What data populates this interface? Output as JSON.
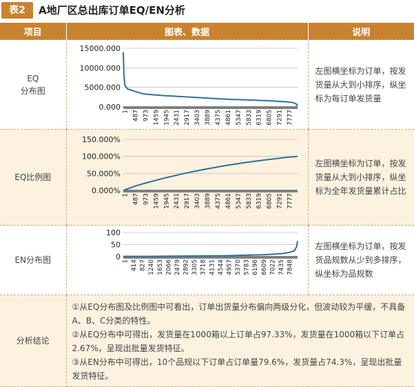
{
  "header": {
    "tag": "表2",
    "title": "A地厂区总出库订单EQ/EN分析"
  },
  "columns": [
    "项目",
    "图表、数据",
    "说明"
  ],
  "rows": [
    {
      "label_line1": "EQ",
      "label_line2": "分布图",
      "description": "左图横坐标为订单，按发货量从大到小排序，纵坐标为每订单发货量"
    },
    {
      "label_line1": "EQ比例图",
      "label_line2": "",
      "description": "左图横坐标为订单，按发货量从大到小排序，纵坐标为全年发货量累计占比"
    },
    {
      "label_line1": "EN分布图",
      "label_line2": "",
      "description": "左图横坐标为订单，按发货品规数从少到多排序，纵坐标为品规数"
    },
    {
      "label_line1": "分析结论",
      "label_line2": "",
      "conclusions": [
        "①从EQ分布图及比例图中可看出，订单出货量分布偏向两级分化，但波动较为平缓，不具备A、B、C分类的特性。",
        "②从EQ分布中可得出，发货量在1000箱以上订单占97.33%，发货量在1000箱以下订单占2.67%，呈现出批量发货特征。",
        "③从EN分布中可得出，10个品规以下订单占订单量79.6%，发货量占74.3%，呈现出批量发货特征。"
      ]
    }
  ],
  "colors": {
    "header": "#c9822f",
    "alt_row": "#fdf2e0",
    "series": "#2f6f99"
  },
  "chart_data": [
    {
      "type": "line",
      "name": "EQ分布图",
      "xlabel": "",
      "ylabel": "",
      "ylim": [
        0,
        15000
      ],
      "y_ticks": [
        "15000.000",
        "10000.000",
        "5000.000",
        "0.000"
      ],
      "y_tick_values": [
        15000,
        10000,
        5000,
        0
      ],
      "x_ticks": [
        "1",
        "487",
        "973",
        "1459",
        "1945",
        "2431",
        "2917",
        "3403",
        "3889",
        "4375",
        "4861",
        "5347",
        "5833",
        "6319",
        "6805",
        "7291",
        "7777"
      ],
      "xlim": [
        1,
        8300
      ],
      "x": [
        1,
        30,
        80,
        200,
        487,
        973,
        1945,
        2917,
        3889,
        4861,
        5833,
        6805,
        7777,
        8100,
        8250,
        8300
      ],
      "y": [
        14000,
        8000,
        5500,
        4600,
        4100,
        3300,
        2900,
        2600,
        2300,
        2000,
        1800,
        1600,
        1300,
        1100,
        700,
        200
      ]
    },
    {
      "type": "line",
      "name": "EQ比例图",
      "xlabel": "",
      "ylabel": "",
      "ylim": [
        0,
        150
      ],
      "y_ticks": [
        "150.000%",
        "100.000%",
        "50.000%",
        "0.000%"
      ],
      "y_tick_values": [
        150,
        100,
        50,
        0
      ],
      "x_ticks": [
        "1",
        "487",
        "973",
        "1459",
        "1945",
        "2431",
        "2917",
        "3403",
        "3889",
        "4375",
        "4861",
        "5347",
        "5833",
        "6319",
        "6805",
        "7291",
        "7777"
      ],
      "xlim": [
        1,
        8300
      ],
      "x": [
        1,
        487,
        973,
        1945,
        2917,
        3889,
        4861,
        5833,
        6805,
        7777,
        8300
      ],
      "y": [
        0,
        11,
        20,
        36,
        50,
        62,
        73,
        82,
        90,
        97,
        100
      ]
    },
    {
      "type": "line",
      "name": "EN分布图",
      "xlabel": "",
      "ylabel": "",
      "ylim": [
        0,
        100
      ],
      "y_ticks": [
        "100",
        "50",
        "0"
      ],
      "y_tick_values": [
        100,
        50,
        0
      ],
      "x_ticks": [
        "1",
        "414",
        "827",
        "1240",
        "1653",
        "2066",
        "2479",
        "2892",
        "3305",
        "3718",
        "4131",
        "4544",
        "4957",
        "5370",
        "5783",
        "6196",
        "6609",
        "7022",
        "7435",
        "7848"
      ],
      "xlim": [
        1,
        8200
      ],
      "x": [
        1,
        1240,
        2479,
        3718,
        4957,
        5783,
        6609,
        7435,
        7848,
        8050,
        8150,
        8200
      ],
      "y": [
        1,
        1,
        2,
        3,
        4,
        6,
        8,
        12,
        18,
        25,
        40,
        65
      ]
    }
  ]
}
